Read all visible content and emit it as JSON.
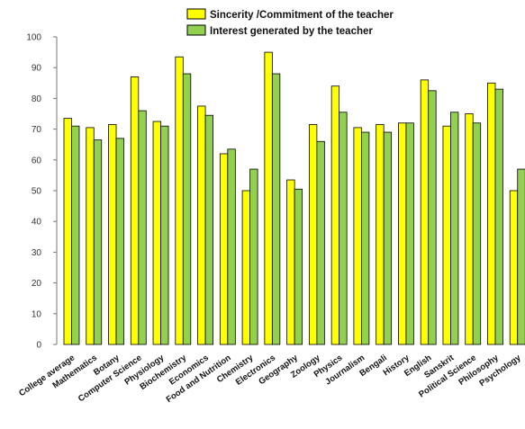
{
  "chart_data": {
    "type": "bar",
    "categories": [
      "College average",
      "Mathematics",
      "Botany",
      "Computer Science",
      "Physiology",
      "Biochemistry",
      "Economics",
      "Food and Nutrition",
      "Chemistry",
      "Electronics",
      "Geography",
      "Zoology",
      "Physics",
      "Journalism",
      "Bengali",
      "History",
      "English",
      "Sanskrit",
      "Political Science",
      "Philosophy",
      "Psychology"
    ],
    "series": [
      {
        "name": "Sincerity /Commitment of the teacher",
        "color": "#ffff00",
        "values": [
          73.5,
          70.5,
          71.5,
          87,
          72.5,
          93.5,
          77.5,
          62,
          50,
          95,
          53.5,
          71.5,
          84,
          70.5,
          71.5,
          72,
          86,
          71,
          75,
          85,
          50
        ]
      },
      {
        "name": "Interest generated by the teacher",
        "color": "#92d050",
        "values": [
          71,
          66.5,
          67,
          76,
          71,
          88,
          74.5,
          63.5,
          57,
          88,
          50.5,
          66,
          75.5,
          69,
          69,
          72,
          82.5,
          75.5,
          72,
          83,
          57
        ]
      }
    ],
    "ylim": [
      0,
      100
    ],
    "yticks": [
      0,
      10,
      20,
      30,
      40,
      50,
      60,
      70,
      80,
      90,
      100
    ],
    "grid": false,
    "legend": "top-center"
  }
}
